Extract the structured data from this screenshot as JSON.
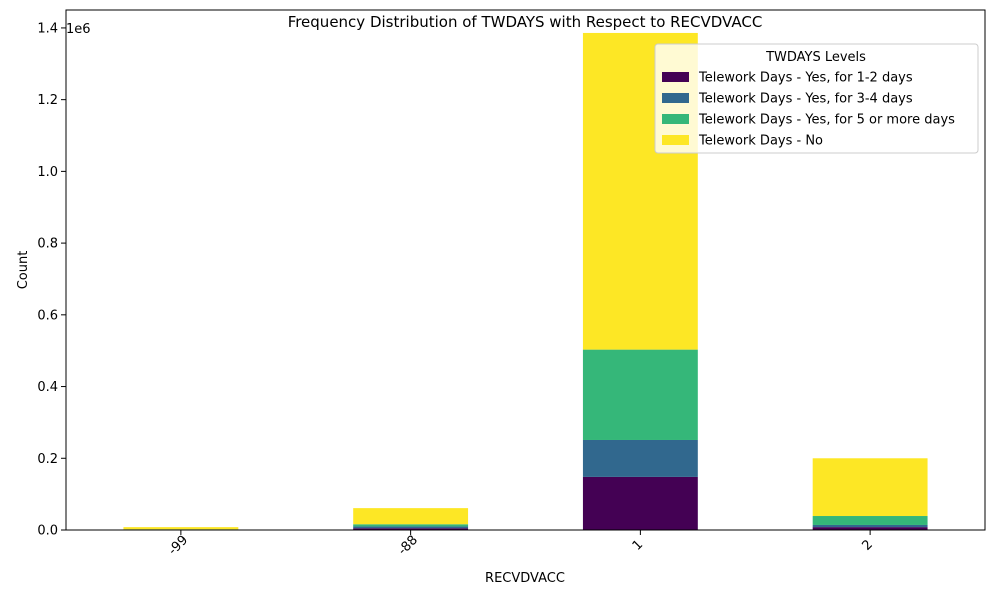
{
  "chart_data": {
    "type": "bar",
    "stacked": true,
    "title": "Frequency Distribution of TWDAYS with Respect to RECVDVACC",
    "xlabel": "RECVDVACC",
    "ylabel": "Count",
    "offset_text": "1e6",
    "categories": [
      "-99",
      "-88",
      "1",
      "2"
    ],
    "ylim": [
      0,
      1450000
    ],
    "yticks": [
      0,
      200000,
      400000,
      600000,
      800000,
      1000000,
      1200000,
      1400000
    ],
    "ytick_labels": [
      "0.0",
      "0.2",
      "0.4",
      "0.6",
      "0.8",
      "1.0",
      "1.2",
      "1.4"
    ],
    "legend_title": "TWDAYS Levels",
    "legend_position": "top-right",
    "series": [
      {
        "name": "Telework Days - Yes, for 1-2 days",
        "color": "#440154",
        "values": [
          1000,
          5000,
          148000,
          8000
        ]
      },
      {
        "name": "Telework Days - Yes, for 3-4 days",
        "color": "#31688e",
        "values": [
          500,
          5000,
          103000,
          6000
        ]
      },
      {
        "name": "Telework Days - Yes, for 5 or more days",
        "color": "#35b779",
        "values": [
          500,
          6000,
          252000,
          25000
        ]
      },
      {
        "name": "Telework Days - No",
        "color": "#fde725",
        "values": [
          6000,
          45000,
          883000,
          161000
        ]
      }
    ]
  }
}
